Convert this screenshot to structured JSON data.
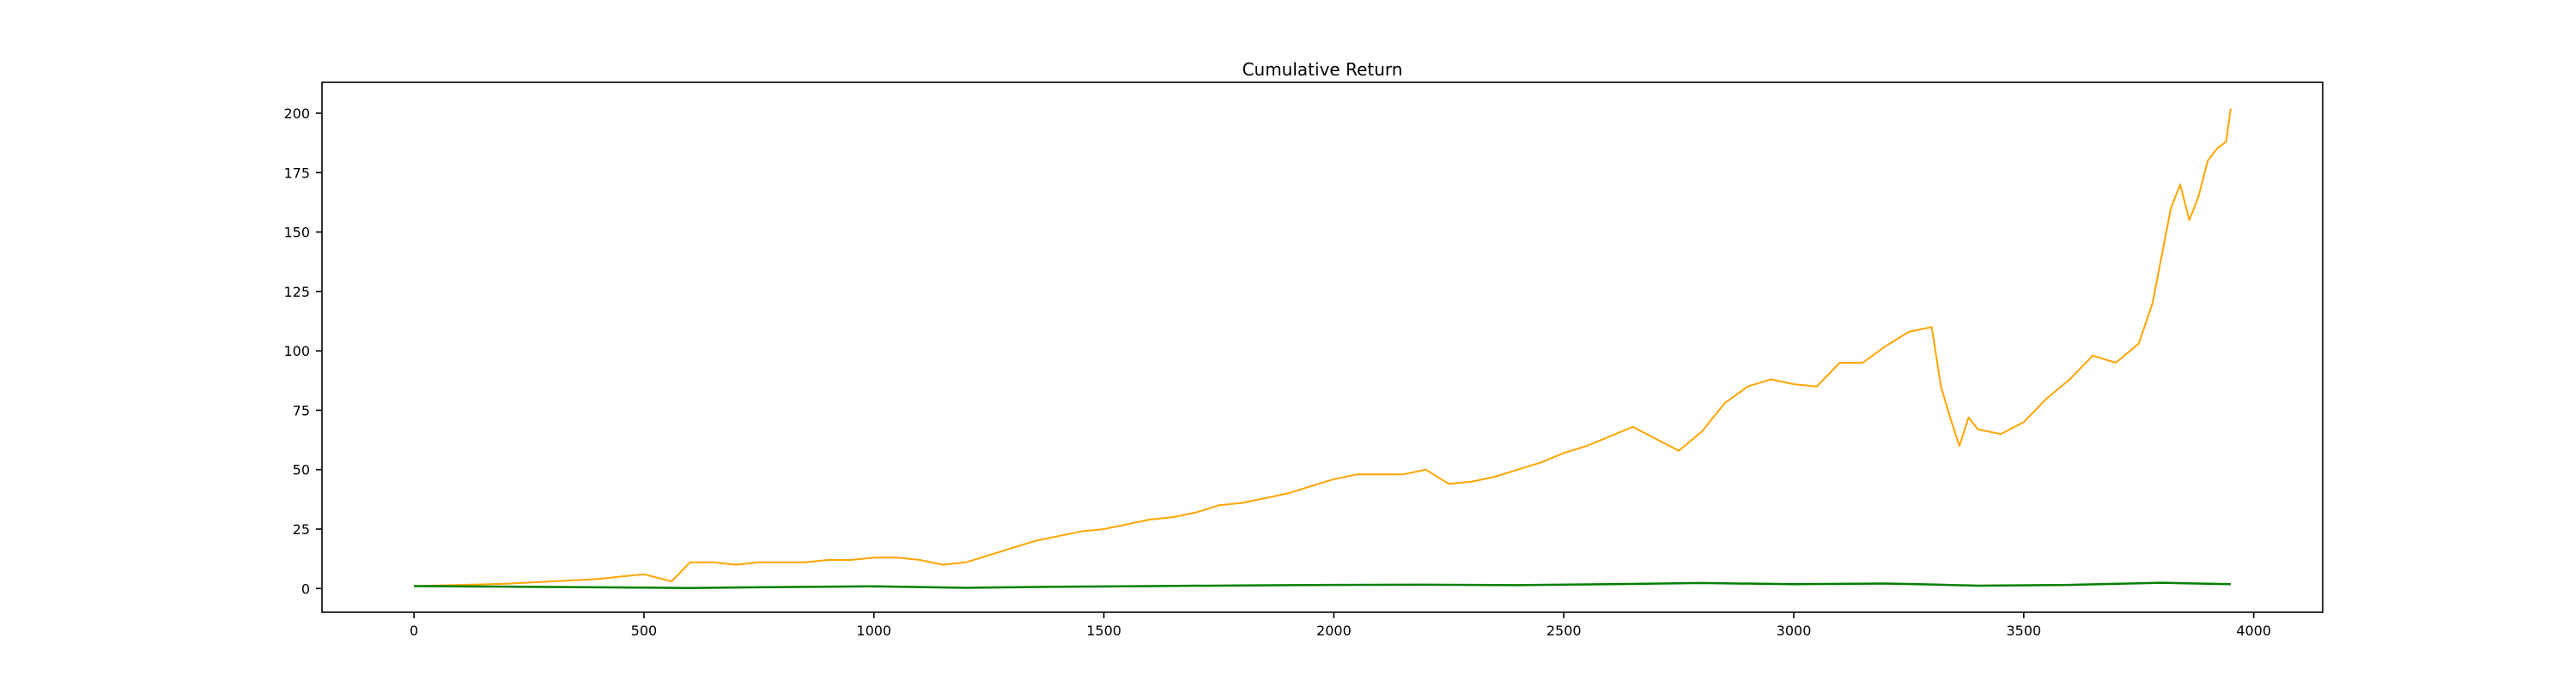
{
  "chart_data": {
    "type": "line",
    "title": "Cumulative Return",
    "xlabel": "",
    "ylabel": "",
    "xlim": [
      -200,
      4150
    ],
    "ylim": [
      -10,
      213
    ],
    "x_ticks": [
      0,
      500,
      1000,
      1500,
      2000,
      2500,
      3000,
      3500,
      4000
    ],
    "y_ticks": [
      0,
      25,
      50,
      75,
      100,
      125,
      150,
      175,
      200
    ],
    "x_tick_labels": [
      "0",
      "500",
      "1000",
      "1500",
      "2000",
      "2500",
      "3000",
      "3500",
      "4000"
    ],
    "y_tick_labels": [
      "0",
      "25",
      "50",
      "75",
      "100",
      "125",
      "150",
      "175",
      "200"
    ],
    "grid": false,
    "legend": "none",
    "series": [
      {
        "color": "#ffa500",
        "x": [
          0,
          100,
          200,
          300,
          400,
          450,
          500,
          540,
          560,
          600,
          650,
          700,
          750,
          800,
          850,
          900,
          950,
          1000,
          1050,
          1100,
          1150,
          1200,
          1250,
          1300,
          1350,
          1400,
          1450,
          1500,
          1550,
          1600,
          1650,
          1700,
          1750,
          1800,
          1850,
          1900,
          1950,
          2000,
          2050,
          2100,
          2150,
          2200,
          2250,
          2300,
          2350,
          2400,
          2450,
          2500,
          2550,
          2600,
          2650,
          2700,
          2750,
          2800,
          2850,
          2900,
          2950,
          3000,
          3050,
          3100,
          3150,
          3200,
          3250,
          3300,
          3320,
          3340,
          3360,
          3380,
          3400,
          3450,
          3500,
          3550,
          3600,
          3650,
          3700,
          3750,
          3780,
          3800,
          3820,
          3840,
          3860,
          3880,
          3900,
          3920,
          3940,
          3950
        ],
        "y": [
          1,
          1.5,
          2,
          3,
          4,
          5,
          6,
          4,
          3,
          11,
          11,
          10,
          11,
          11,
          11,
          12,
          12,
          13,
          13,
          12,
          10,
          11,
          14,
          17,
          20,
          22,
          24,
          25,
          27,
          29,
          30,
          32,
          35,
          36,
          38,
          40,
          43,
          46,
          48,
          48,
          48,
          50,
          44,
          45,
          47,
          50,
          53,
          57,
          60,
          64,
          68,
          63,
          58,
          66,
          78,
          85,
          88,
          86,
          85,
          95,
          95,
          102,
          108,
          110,
          85,
          72,
          60,
          72,
          67,
          65,
          70,
          80,
          88,
          98,
          95,
          103,
          120,
          140,
          160,
          170,
          155,
          165,
          180,
          185,
          188,
          202
        ]
      },
      {
        "color": "#008000",
        "x": [
          0,
          200,
          400,
          600,
          800,
          1000,
          1200,
          1400,
          1600,
          1800,
          2000,
          2200,
          2400,
          2600,
          2800,
          3000,
          3200,
          3300,
          3400,
          3600,
          3800,
          3950
        ],
        "y": [
          1,
          0.8,
          0.5,
          0.2,
          0.6,
          0.9,
          0.3,
          0.7,
          1,
          1.3,
          1.5,
          1.6,
          1.4,
          1.8,
          2.3,
          1.8,
          2.1,
          1.7,
          1.2,
          1.5,
          2.4,
          1.8
        ]
      }
    ]
  }
}
